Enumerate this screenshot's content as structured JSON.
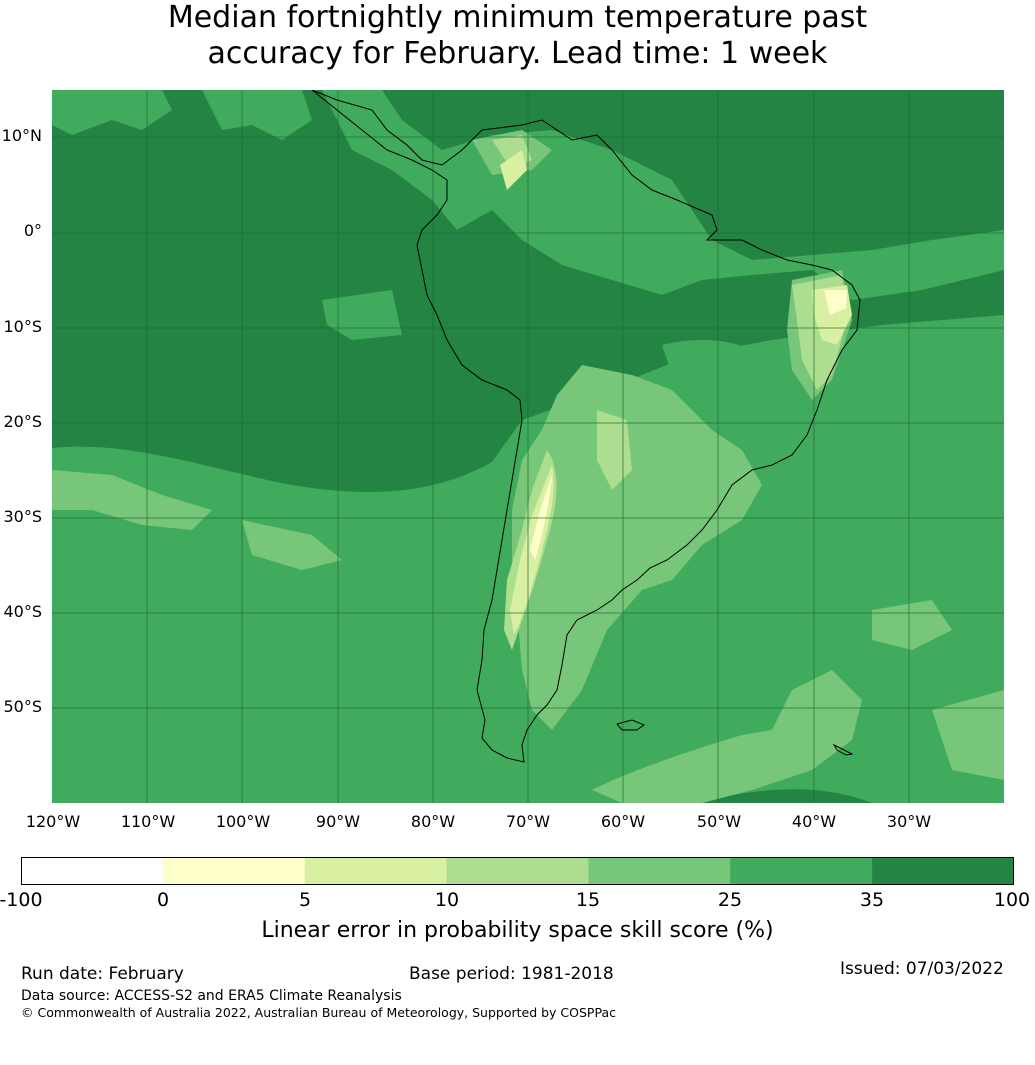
{
  "title": {
    "line1": "Median fortnightly minimum temperature past",
    "line2": "accuracy for February. Lead time: 1 week"
  },
  "map": {
    "lat_labels": [
      "10°N",
      "0°",
      "10°S",
      "20°S",
      "30°S",
      "40°S",
      "50°S"
    ],
    "lon_labels": [
      "120°W",
      "110°W",
      "100°W",
      "90°W",
      "80°W",
      "70°W",
      "60°W",
      "50°W",
      "40°W",
      "30°W"
    ],
    "gridline_color": "#1f6b37",
    "coastline_color": "#000000"
  },
  "colorbar": {
    "bins": [
      {
        "from": "-100",
        "to": "0",
        "color": "#ffffff"
      },
      {
        "from": "0",
        "to": "5",
        "color": "#ffffcc"
      },
      {
        "from": "5",
        "to": "10",
        "color": "#d9f0a3"
      },
      {
        "from": "10",
        "to": "15",
        "color": "#addd8e"
      },
      {
        "from": "15",
        "to": "25",
        "color": "#78c679"
      },
      {
        "from": "25",
        "to": "35",
        "color": "#41ab5d"
      },
      {
        "from": "35",
        "to": "100",
        "color": "#238443"
      }
    ],
    "ticks": [
      "-100",
      "0",
      "5",
      "10",
      "15",
      "25",
      "35",
      "100"
    ],
    "label": "Linear error in probability space skill score (%)"
  },
  "footer": {
    "run_date": "Run date: February",
    "base_period": "Base period: 1981-2018",
    "issued": "Issued: 07/03/2022",
    "data_source": "Data source: ACCESS-S2 and ERA5 Climate Reanalysis",
    "copyright": "© Commonwealth of Australia 2022, Australian Bureau of Meteorology, Supported by COSPPac"
  }
}
